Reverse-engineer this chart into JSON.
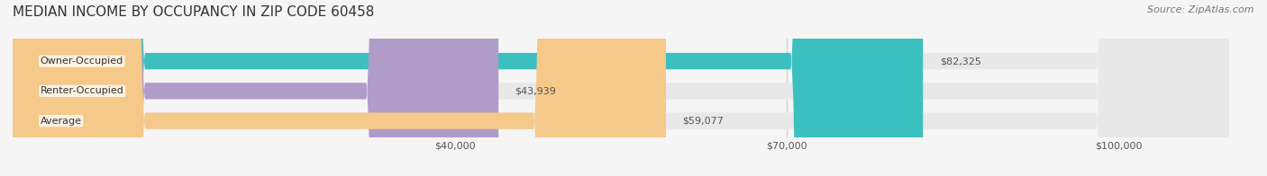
{
  "title": "MEDIAN INCOME BY OCCUPANCY IN ZIP CODE 60458",
  "source": "Source: ZipAtlas.com",
  "categories": [
    "Owner-Occupied",
    "Renter-Occupied",
    "Average"
  ],
  "values": [
    82325,
    43939,
    59077
  ],
  "labels": [
    "$82,325",
    "$43,939",
    "$59,077"
  ],
  "bar_colors": [
    "#3bbfbf",
    "#b09cc8",
    "#f5c98a"
  ],
  "track_color": "#e8e8e8",
  "x_max": 110000,
  "x_ticks": [
    40000,
    70000,
    100000
  ],
  "x_tick_labels": [
    "$40,000",
    "$70,000",
    "$100,000"
  ],
  "title_fontsize": 11,
  "source_fontsize": 8,
  "label_fontsize": 8,
  "category_fontsize": 8,
  "bar_height": 0.55,
  "background_color": "#f5f5f5"
}
